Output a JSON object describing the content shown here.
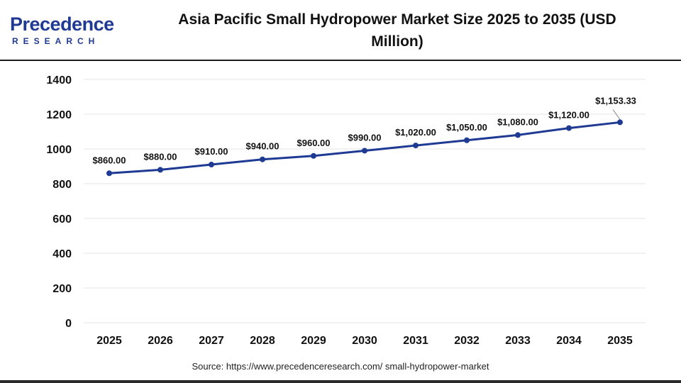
{
  "logo": {
    "word": "Precedence",
    "sub": "RESEARCH"
  },
  "header": {
    "title": "Asia Pacific Small Hydropower Market Size 2025 to 2035 (USD Million)"
  },
  "footer": {
    "source": "Source: https://www.precedenceresearch.com/ small-hydropower-market"
  },
  "colors": {
    "line": "#1f3a93",
    "marker": "#1f3a93",
    "grid": "#e6e6e6"
  },
  "chart_data": {
    "type": "line",
    "title": "Asia Pacific Small Hydropower Market Size 2025 to 2035 (USD Million)",
    "xlabel": "",
    "ylabel": "",
    "categories": [
      "2025",
      "2026",
      "2027",
      "2028",
      "2029",
      "2030",
      "2031",
      "2032",
      "2033",
      "2034",
      "2035"
    ],
    "values": [
      860,
      880,
      910,
      940,
      960,
      990,
      1020,
      1050,
      1080,
      1120,
      1153.33
    ],
    "data_labels": [
      "$860.00",
      "$880.00",
      "$910.00",
      "$940.00",
      "$960.00",
      "$990.00",
      "$1,020.00",
      "$1,050.00",
      "$1,080.00",
      "$1,120.00",
      "$1,153.33"
    ],
    "ylim": [
      0,
      1400
    ],
    "yticks": [
      0,
      200,
      400,
      600,
      800,
      1000,
      1200,
      1400
    ],
    "grid": true,
    "legend": "none"
  }
}
